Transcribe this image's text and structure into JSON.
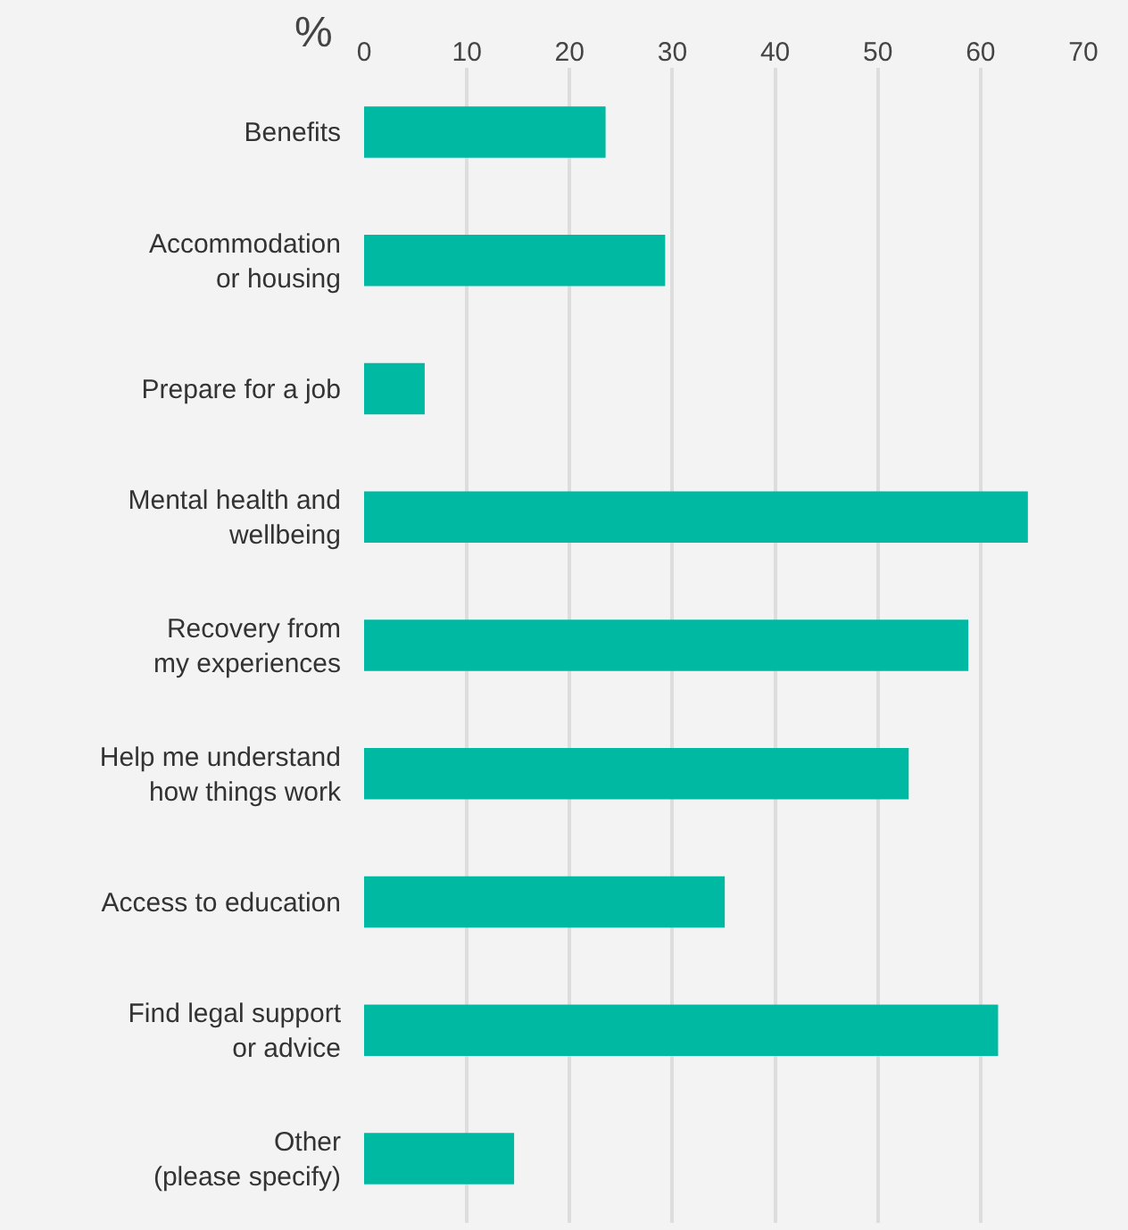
{
  "chart_data": {
    "type": "bar",
    "orientation": "horizontal",
    "xlabel": "%",
    "categories": [
      "Benefits",
      "Accommodation\nor housing",
      "Prepare for a job",
      "Mental health and\nwellbeing",
      "Recovery from\nmy experiences",
      "Help me understand\nhow things work",
      "Access to education",
      "Find legal support\nor advice",
      "Other\n(please specify)"
    ],
    "values": [
      23.5,
      29.3,
      5.9,
      64.6,
      58.8,
      53.0,
      35.1,
      61.7,
      14.6
    ],
    "color": "#00b9a3",
    "xlim": [
      0,
      70
    ],
    "xticks": [
      0,
      10,
      20,
      30,
      40,
      50,
      60,
      70
    ],
    "grid": "x"
  }
}
